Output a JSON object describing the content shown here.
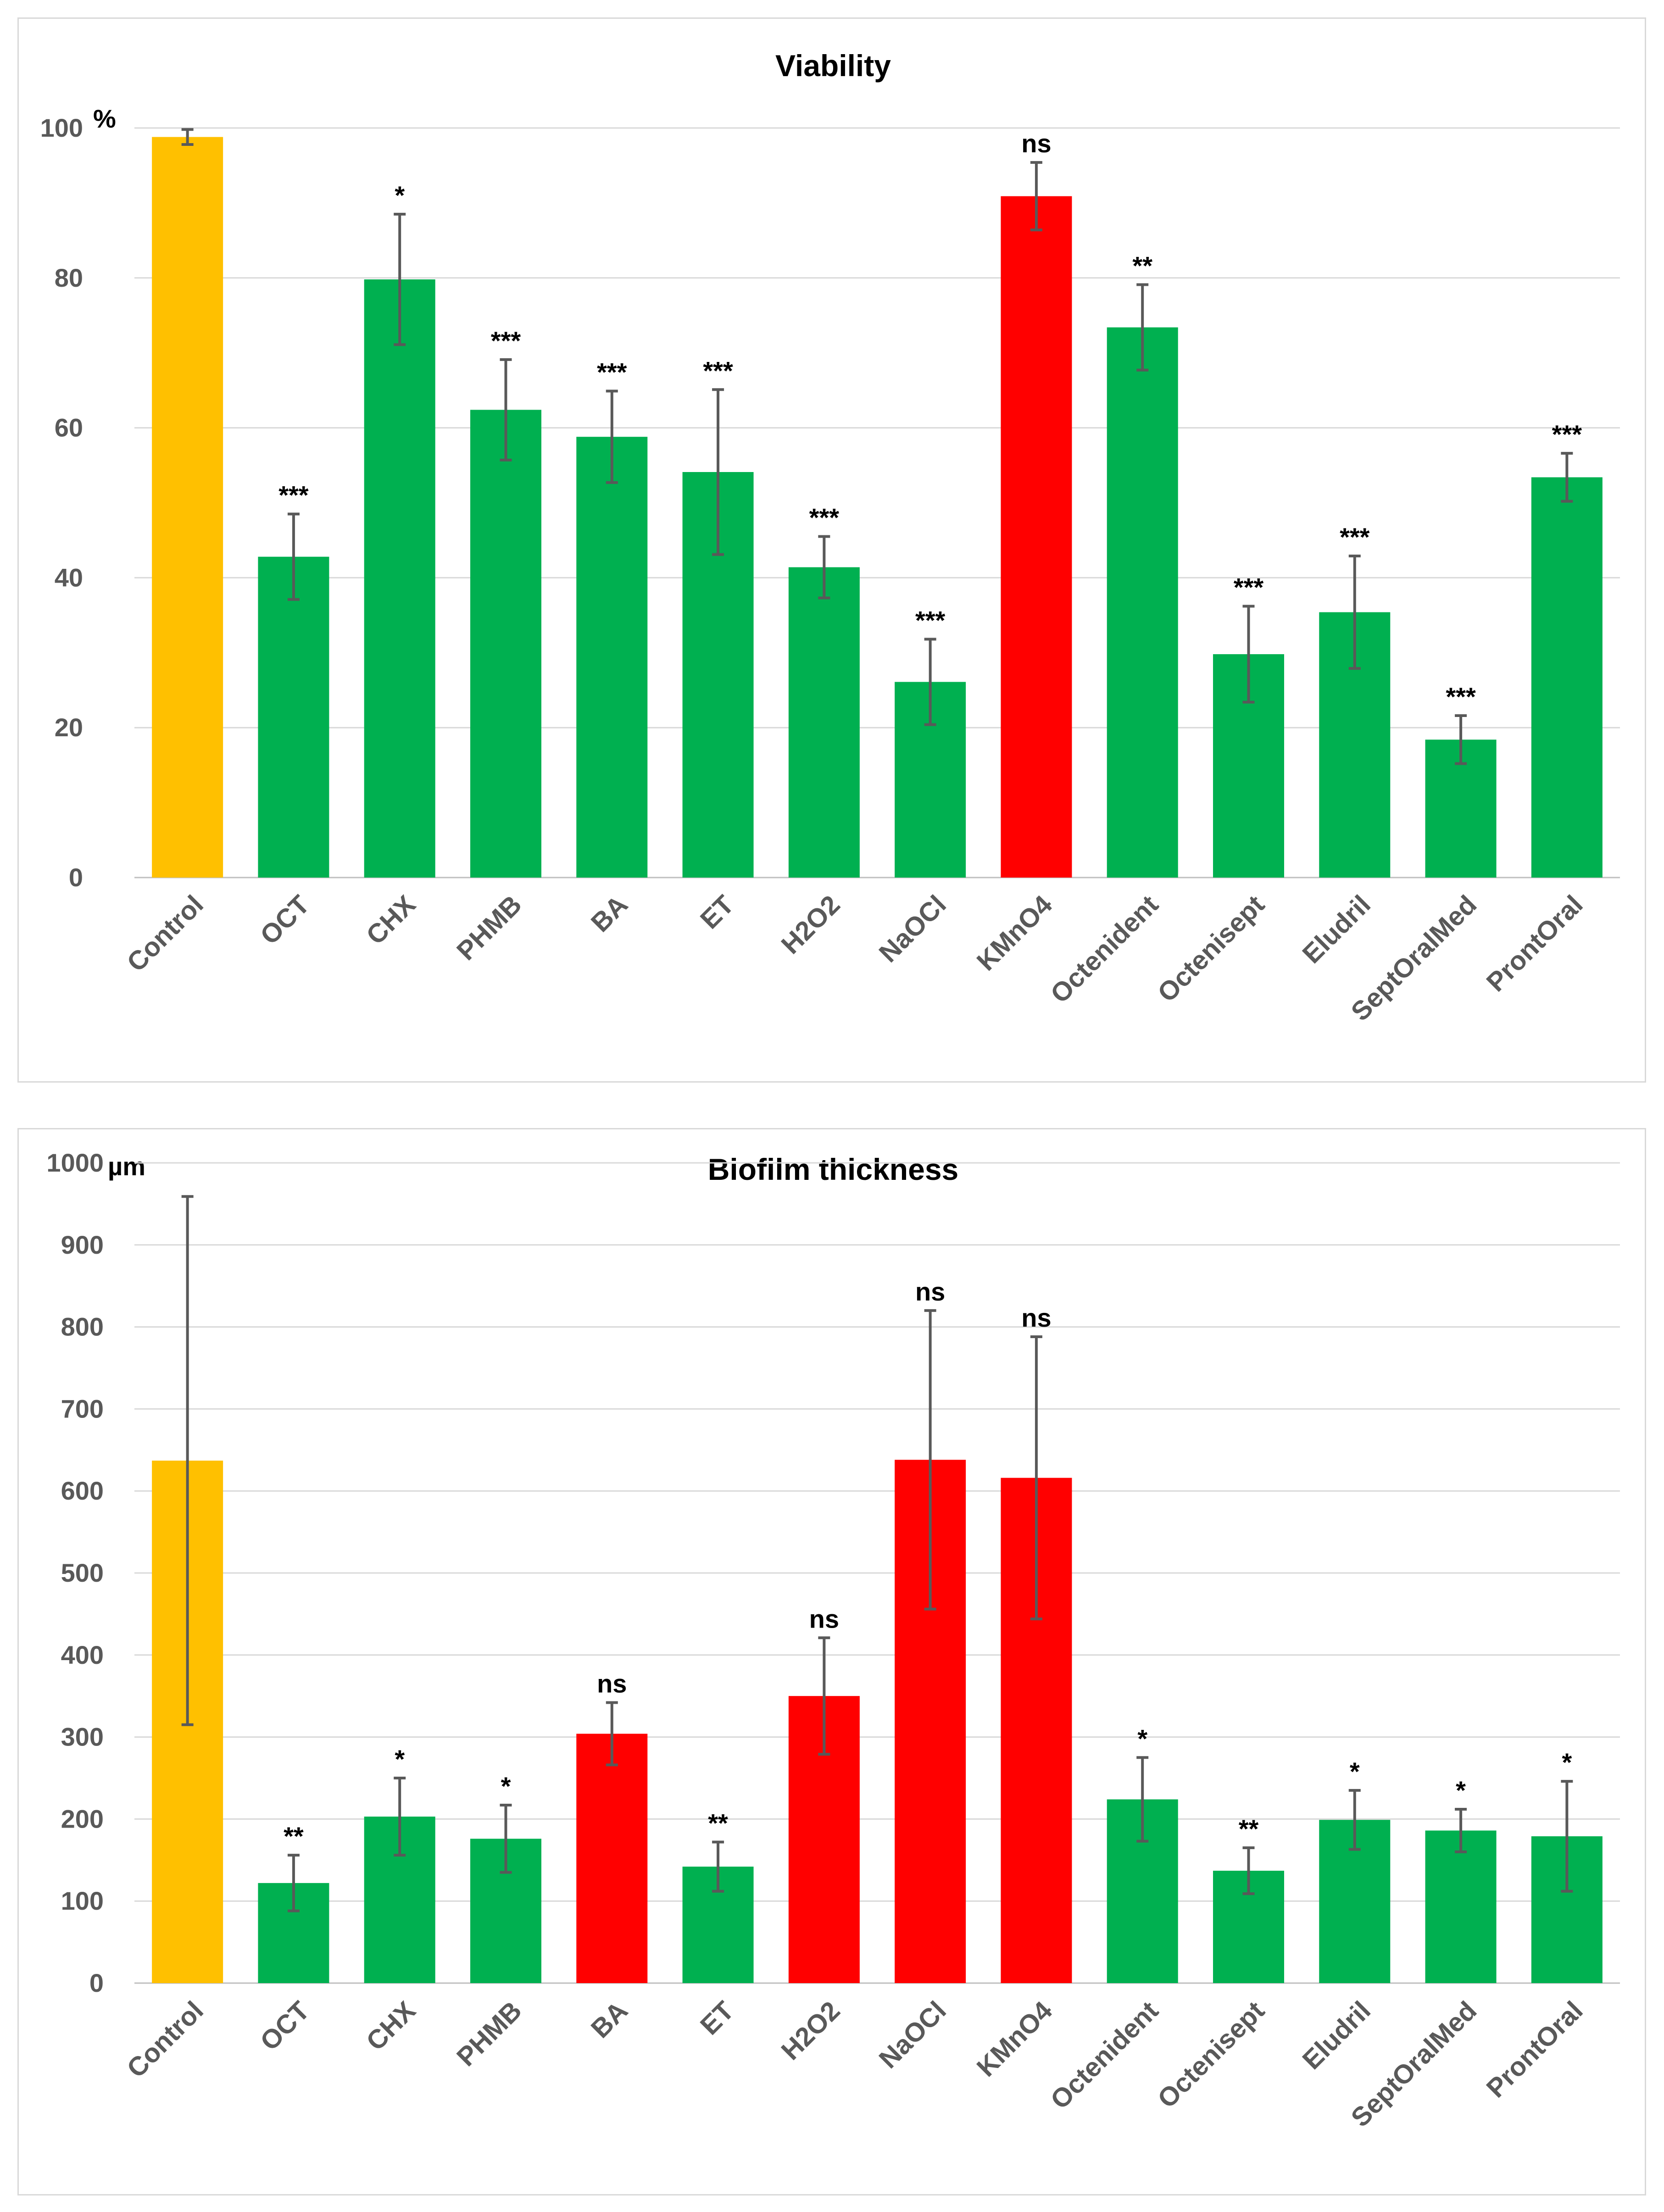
{
  "colors": {
    "control": "#FFC000",
    "significant": "#00B050",
    "not_significant": "#FF0000",
    "error_bar": "#595959",
    "grid": "#D9D9D9"
  },
  "chart_data": [
    {
      "type": "bar",
      "title": "Viability",
      "unit": "%",
      "ylabel": "",
      "xlabel": "",
      "ylim": [
        0,
        100
      ],
      "yticks": [
        0,
        20,
        40,
        60,
        80,
        100
      ],
      "grid": true,
      "categories": [
        "Control",
        "OCT",
        "CHX",
        "PHMB",
        "BA",
        "ET",
        "H2O2",
        "NaOCl",
        "KMnO4",
        "Octenident",
        "Octenisept",
        "Eludril",
        "SeptOralMed",
        "ProntOral"
      ],
      "values": [
        98.8,
        42.8,
        79.8,
        62.4,
        58.8,
        54.1,
        41.4,
        26.1,
        90.9,
        73.4,
        29.8,
        35.4,
        18.4,
        53.4
      ],
      "errors": [
        1.0,
        5.7,
        8.7,
        6.7,
        6.1,
        11.0,
        4.1,
        5.7,
        4.5,
        5.7,
        6.4,
        7.5,
        3.2,
        3.2
      ],
      "significance": [
        "",
        "***",
        "*",
        "***",
        "***",
        "***",
        "***",
        "***",
        "ns",
        "**",
        "***",
        "***",
        "***",
        "***"
      ],
      "bar_colors": [
        "#FFC000",
        "#00B050",
        "#00B050",
        "#00B050",
        "#00B050",
        "#00B050",
        "#00B050",
        "#00B050",
        "#FF0000",
        "#00B050",
        "#00B050",
        "#00B050",
        "#00B050",
        "#00B050"
      ]
    },
    {
      "type": "bar",
      "title": "Biofilm thickness",
      "unit": "µm",
      "ylabel": "",
      "xlabel": "",
      "ylim": [
        0,
        1000
      ],
      "yticks": [
        0,
        100,
        200,
        300,
        400,
        500,
        600,
        700,
        800,
        900,
        1000
      ],
      "grid": true,
      "categories": [
        "Control",
        "OCT",
        "CHX",
        "PHMB",
        "BA",
        "ET",
        "H2O2",
        "NaOCl",
        "KMnO4",
        "Octenident",
        "Octenisept",
        "Eludril",
        "SeptOralMed",
        "ProntOral"
      ],
      "values": [
        637,
        122,
        203,
        176,
        304,
        142,
        350,
        638,
        616,
        224,
        137,
        199,
        186,
        179
      ],
      "errors": [
        322,
        34,
        47,
        41,
        38,
        30,
        71,
        182,
        172,
        51,
        28,
        36,
        26,
        67
      ],
      "significance": [
        "",
        "**",
        "*",
        "*",
        "ns",
        "**",
        "ns",
        "ns",
        "ns",
        "*",
        "**",
        "*",
        "*",
        "*"
      ],
      "bar_colors": [
        "#FFC000",
        "#00B050",
        "#00B050",
        "#00B050",
        "#FF0000",
        "#00B050",
        "#FF0000",
        "#FF0000",
        "#FF0000",
        "#00B050",
        "#00B050",
        "#00B050",
        "#00B050",
        "#00B050"
      ]
    }
  ]
}
